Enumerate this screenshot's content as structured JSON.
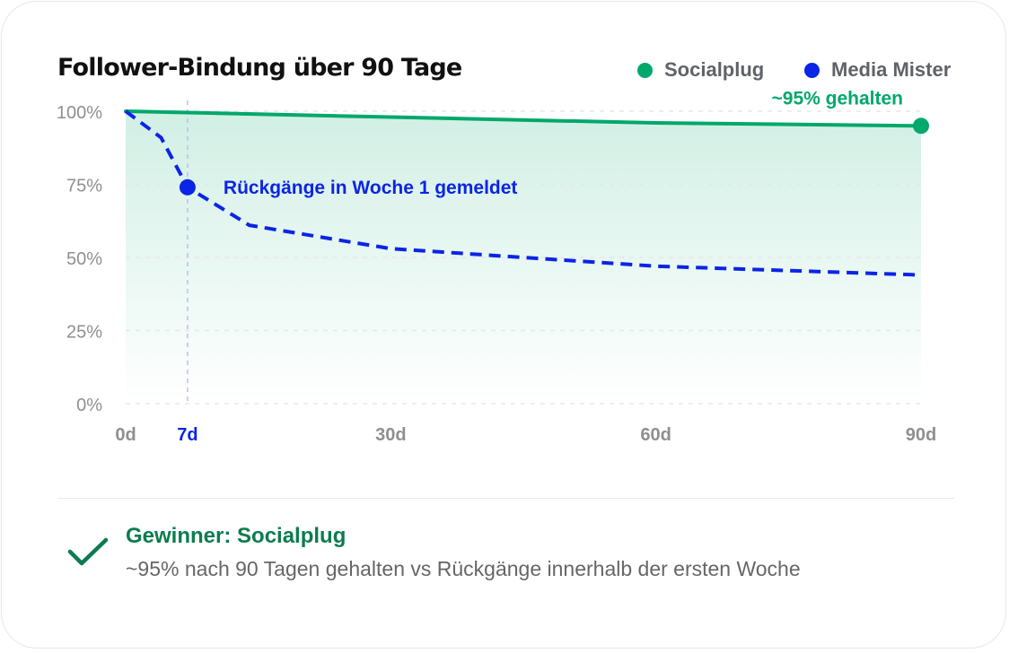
{
  "chart_data": {
    "type": "line",
    "title": "Follower-Bindung über 90 Tage",
    "xlabel": "",
    "ylabel": "",
    "x_ticks": [
      {
        "value": 0,
        "label": "0d"
      },
      {
        "value": 7,
        "label": "7d"
      },
      {
        "value": 30,
        "label": "30d"
      },
      {
        "value": 60,
        "label": "60d"
      },
      {
        "value": 90,
        "label": "90d"
      }
    ],
    "y_ticks": [
      {
        "value": 100,
        "label": "100%"
      },
      {
        "value": 75,
        "label": "75%"
      },
      {
        "value": 50,
        "label": "50%"
      },
      {
        "value": 25,
        "label": "25%"
      },
      {
        "value": 0,
        "label": "0%"
      }
    ],
    "xlim": [
      0,
      90
    ],
    "ylim": [
      0,
      100
    ],
    "grid": true,
    "legend_placement": "top-right",
    "series": [
      {
        "name": "Socialplug",
        "color": "#00a86b",
        "line_style": "solid",
        "area_fill": true,
        "points": [
          {
            "x": 0,
            "y": 100
          },
          {
            "x": 30,
            "y": 98
          },
          {
            "x": 60,
            "y": 96
          },
          {
            "x": 90,
            "y": 95
          }
        ],
        "annotation": {
          "x": 90,
          "y": 95,
          "text": "~95% gehalten"
        }
      },
      {
        "name": "Media Mister",
        "color": "#0b24e5",
        "line_style": "dashed",
        "area_fill": false,
        "points": [
          {
            "x": 0,
            "y": 100
          },
          {
            "x": 4,
            "y": 91
          },
          {
            "x": 7,
            "y": 74
          },
          {
            "x": 14,
            "y": 61
          },
          {
            "x": 30,
            "y": 53
          },
          {
            "x": 60,
            "y": 47
          },
          {
            "x": 90,
            "y": 44
          }
        ],
        "annotation": {
          "x": 7,
          "y": 74,
          "text": "Rückgänge in Woche 1 gemeldet"
        }
      }
    ],
    "highlight_x": 7
  },
  "winner": {
    "title": "Gewinner: Socialplug",
    "description": "~95% nach 90 Tagen gehalten vs Rückgänge innerhalb der ersten Woche",
    "icon": "check-icon",
    "color": "#0b7c4f"
  },
  "colors": {
    "socialplug": "#00a86b",
    "mediaMister": "#0b24e5",
    "axis": "#8f8f8f",
    "grid": "#e7e7e7",
    "divider": "#e8e8e8"
  }
}
